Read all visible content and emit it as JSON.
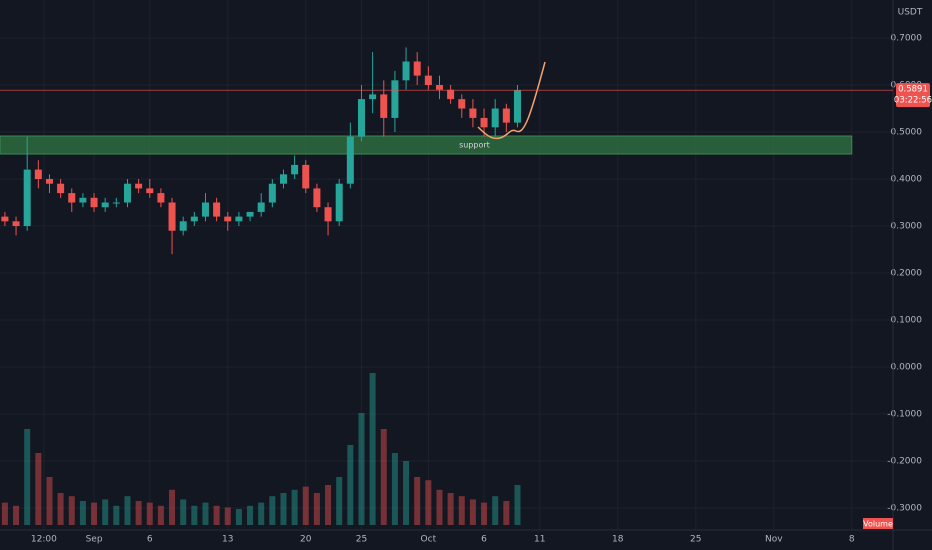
{
  "chart_data": {
    "type": "candlestick",
    "currency": "USDT",
    "x": [
      -8,
      -7,
      -6,
      -5,
      -4,
      -3,
      -2,
      -1,
      0,
      1,
      2,
      3,
      4,
      5,
      6,
      7,
      8,
      9,
      10,
      11,
      12,
      13,
      14,
      15,
      16,
      17,
      18,
      19,
      20,
      21,
      22,
      23,
      24,
      25,
      26,
      27,
      28,
      29,
      30,
      31,
      32,
      33,
      34,
      35,
      36,
      37,
      38
    ],
    "open": [
      0.32,
      0.31,
      0.3,
      0.42,
      0.4,
      0.39,
      0.37,
      0.35,
      0.36,
      0.34,
      0.35,
      0.35,
      0.39,
      0.38,
      0.37,
      0.35,
      0.29,
      0.31,
      0.32,
      0.35,
      0.32,
      0.31,
      0.32,
      0.33,
      0.35,
      0.39,
      0.41,
      0.43,
      0.38,
      0.34,
      0.31,
      0.39,
      0.49,
      0.57,
      0.58,
      0.53,
      0.61,
      0.65,
      0.62,
      0.6,
      0.59,
      0.57,
      0.55,
      0.53,
      0.51,
      0.55,
      0.52
    ],
    "high": [
      0.33,
      0.32,
      0.49,
      0.44,
      0.41,
      0.4,
      0.38,
      0.37,
      0.37,
      0.36,
      0.36,
      0.4,
      0.4,
      0.4,
      0.38,
      0.36,
      0.32,
      0.33,
      0.37,
      0.36,
      0.33,
      0.33,
      0.33,
      0.37,
      0.4,
      0.42,
      0.45,
      0.44,
      0.39,
      0.35,
      0.4,
      0.52,
      0.6,
      0.67,
      0.61,
      0.63,
      0.68,
      0.67,
      0.64,
      0.62,
      0.6,
      0.58,
      0.57,
      0.55,
      0.57,
      0.56,
      0.6
    ],
    "low": [
      0.3,
      0.28,
      0.29,
      0.38,
      0.37,
      0.36,
      0.33,
      0.34,
      0.33,
      0.33,
      0.34,
      0.34,
      0.37,
      0.36,
      0.34,
      0.24,
      0.28,
      0.3,
      0.31,
      0.31,
      0.29,
      0.3,
      0.31,
      0.32,
      0.34,
      0.38,
      0.4,
      0.37,
      0.33,
      0.28,
      0.3,
      0.38,
      0.48,
      0.54,
      0.49,
      0.5,
      0.59,
      0.6,
      0.59,
      0.57,
      0.56,
      0.53,
      0.51,
      0.49,
      0.49,
      0.5,
      0.51
    ],
    "close": [
      0.31,
      0.3,
      0.42,
      0.4,
      0.39,
      0.37,
      0.35,
      0.36,
      0.34,
      0.35,
      0.35,
      0.39,
      0.38,
      0.37,
      0.35,
      0.29,
      0.31,
      0.32,
      0.35,
      0.32,
      0.31,
      0.32,
      0.33,
      0.35,
      0.39,
      0.41,
      0.43,
      0.38,
      0.34,
      0.31,
      0.39,
      0.49,
      0.57,
      0.58,
      0.53,
      0.61,
      0.65,
      0.62,
      0.6,
      0.59,
      0.57,
      0.55,
      0.53,
      0.51,
      0.55,
      0.52,
      0.5891
    ],
    "volume": [
      14,
      12,
      60,
      45,
      30,
      20,
      18,
      15,
      14,
      16,
      12,
      18,
      15,
      14,
      12,
      22,
      16,
      12,
      14,
      12,
      11,
      10,
      12,
      14,
      18,
      20,
      22,
      24,
      20,
      25,
      30,
      50,
      70,
      95,
      60,
      45,
      40,
      30,
      28,
      22,
      20,
      18,
      16,
      14,
      18,
      15,
      25
    ],
    "volume_lim": [
      0,
      100
    ],
    "volume_label": "Volume",
    "up_color": "#26a69a",
    "down_color": "#ef5350",
    "xlim": [
      -8.44,
      71.7
    ],
    "xticks": [
      {
        "value": -4.5,
        "label": "12:00"
      },
      {
        "value": 0,
        "label": "Sep"
      },
      {
        "value": 5,
        "label": "6"
      },
      {
        "value": 12,
        "label": "13"
      },
      {
        "value": 19,
        "label": "20"
      },
      {
        "value": 24,
        "label": "25"
      },
      {
        "value": 30,
        "label": "Oct"
      },
      {
        "value": 35,
        "label": "6"
      },
      {
        "value": 40,
        "label": "11"
      },
      {
        "value": 47,
        "label": "18"
      },
      {
        "value": 54,
        "label": "25"
      },
      {
        "value": 61,
        "label": "Nov"
      },
      {
        "value": 68,
        "label": "8"
      }
    ],
    "ylim": [
      -0.3468,
      0.7809
    ],
    "yticks": [
      {
        "value": 0.7,
        "label": "0.7000"
      },
      {
        "value": 0.6,
        "label": "0.6000"
      },
      {
        "value": 0.5,
        "label": "0.5000"
      },
      {
        "value": 0.4,
        "label": "0.4000"
      },
      {
        "value": 0.3,
        "label": "0.3000"
      },
      {
        "value": 0.2,
        "label": "0.2000"
      },
      {
        "value": 0.1,
        "label": "0.1000"
      },
      {
        "value": 0,
        "label": "0.0000"
      },
      {
        "value": -0.1,
        "label": "-0.1000"
      },
      {
        "value": -0.2,
        "label": "-0.2000"
      },
      {
        "value": -0.3,
        "label": "-0.3000"
      }
    ],
    "grid": true,
    "last_price": 0.5891,
    "countdown": "03:22:56",
    "support_zone": {
      "label": "support",
      "ylim": [
        0.4532,
        0.4915
      ],
      "x_end": 68
    }
  }
}
